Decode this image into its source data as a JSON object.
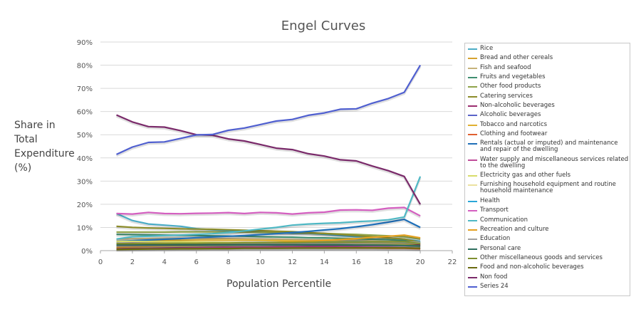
{
  "chart_data": {
    "type": "line",
    "title": "Engel Curves",
    "xlabel": "Population Percentile",
    "ylabel_lines": [
      "Share in",
      "Total",
      "Expenditure",
      "(%)"
    ],
    "xlim": [
      0,
      22
    ],
    "ylim": [
      0,
      90
    ],
    "x_ticks": [
      "0",
      "2",
      "4",
      "6",
      "8",
      "10",
      "12",
      "14",
      "16",
      "18",
      "20",
      "22"
    ],
    "y_ticks": [
      "0%",
      "10%",
      "20%",
      "30%",
      "40%",
      "50%",
      "60%",
      "70%",
      "80%",
      "90%"
    ],
    "x": [
      1,
      2,
      3,
      4,
      5,
      6,
      7,
      8,
      9,
      10,
      11,
      12,
      13,
      14,
      15,
      16,
      17,
      18,
      19,
      20
    ],
    "series": [
      {
        "name": "Rice",
        "color": "#4bacc6",
        "values": [
          16,
          13,
          11.5,
          11,
          10.5,
          9.5,
          9,
          8.5,
          8.5,
          8,
          8,
          7.5,
          7.5,
          7,
          6.5,
          6,
          6,
          5.5,
          5,
          4
        ]
      },
      {
        "name": "Bread and other cereals",
        "color": "#d6a32f",
        "values": [
          2.2,
          2.2,
          2.3,
          2.3,
          2.3,
          2.4,
          2.4,
          2.4,
          2.5,
          2.5,
          2.5,
          2.6,
          2.6,
          2.6,
          2.7,
          2.7,
          2.8,
          2.8,
          2.8,
          2.5
        ]
      },
      {
        "name": "Fish and seafood",
        "color": "#c6b27a",
        "values": [
          5,
          5.1,
          5.2,
          5.3,
          5.3,
          5.3,
          5.2,
          5.2,
          5.1,
          5,
          4.9,
          4.8,
          4.7,
          4.6,
          4.5,
          4.4,
          4.2,
          4,
          3.8,
          3
        ]
      },
      {
        "name": "Fruits and vegetables",
        "color": "#3f8e70",
        "values": [
          7,
          6.9,
          6.8,
          6.7,
          6.6,
          6.5,
          6.4,
          6.3,
          6.2,
          6,
          5.9,
          5.8,
          5.6,
          5.5,
          5.3,
          5.1,
          4.9,
          4.7,
          4.4,
          3.5
        ]
      },
      {
        "name": "Other food products",
        "color": "#8fa44a",
        "values": [
          8,
          8,
          8,
          8,
          8.1,
          8.1,
          8.1,
          8,
          8,
          7.9,
          7.8,
          7.7,
          7.6,
          7.4,
          7.2,
          7,
          6.7,
          6.4,
          6,
          5
        ]
      },
      {
        "name": "Catering services",
        "color": "#8c8c2a",
        "values": [
          10.5,
          10,
          9.8,
          9.6,
          9.4,
          9.3,
          9.2,
          9,
          8.8,
          8.6,
          8.4,
          8.2,
          7.8,
          7.4,
          7,
          6.5,
          6,
          5.5,
          5,
          3.5
        ]
      },
      {
        "name": "Non-alcoholic beverages",
        "color": "#9b2d6f",
        "values": [
          3,
          3.1,
          3.1,
          3.2,
          3.2,
          3.3,
          3.3,
          3.3,
          3.3,
          3.3,
          3.4,
          3.4,
          3.4,
          3.3,
          3.3,
          3.3,
          3.2,
          3.1,
          3,
          2.5
        ]
      },
      {
        "name": "Alcoholic beverages",
        "color": "#5a63c8",
        "values": [
          1,
          1,
          1,
          1.1,
          1.1,
          1.1,
          1.1,
          1.1,
          1.2,
          1.2,
          1.2,
          1.2,
          1.2,
          1.2,
          1.2,
          1.2,
          1.2,
          1.1,
          1.1,
          1
        ]
      },
      {
        "name": "Tobacco and narcotics",
        "color": "#e0b030",
        "values": [
          4,
          4.2,
          4.3,
          4.4,
          4.5,
          4.5,
          4.5,
          4.5,
          4.5,
          4.4,
          4.3,
          4.2,
          4.1,
          4,
          3.8,
          3.6,
          3.4,
          3.1,
          2.8,
          2
        ]
      },
      {
        "name": "Clothing and footwear",
        "color": "#e06030",
        "values": [
          1,
          1,
          1,
          1.1,
          1.1,
          1.1,
          1.1,
          1.1,
          1.1,
          1.1,
          1.1,
          1.1,
          1.1,
          1.1,
          1.1,
          1.1,
          1.1,
          1,
          1,
          0.8
        ]
      },
      {
        "name": "Rentals (actual or imputed) and maintenance and repair of the dwelling",
        "color": "#1f6fb8",
        "values": [
          4,
          4.3,
          4.6,
          4.9,
          5.2,
          5.6,
          5.9,
          6.2,
          6.5,
          6.9,
          7.3,
          7.8,
          8.3,
          8.9,
          9.5,
          10.3,
          11.2,
          12.3,
          13.5,
          10
        ]
      },
      {
        "name": "Water supply and miscellaneous services related to the dwelling",
        "color": "#c04c9a",
        "values": [
          1.2,
          1.3,
          1.3,
          1.4,
          1.4,
          1.5,
          1.5,
          1.5,
          1.6,
          1.6,
          1.7,
          1.7,
          1.8,
          1.8,
          1.9,
          1.9,
          2,
          2,
          2.1,
          2
        ]
      },
      {
        "name": "Electricity gas and other fuels",
        "color": "#d8dc6a",
        "values": [
          4,
          4,
          3.9,
          3.8,
          3.8,
          3.7,
          3.6,
          3.5,
          3.4,
          3.3,
          3.2,
          3.1,
          3,
          2.9,
          2.8,
          2.7,
          2.6,
          2.5,
          2.4,
          2
        ]
      },
      {
        "name": "Furnishing household equipment and routine household maintenance",
        "color": "#ece2a0",
        "values": [
          1.5,
          1.6,
          1.7,
          1.8,
          1.9,
          2,
          2.1,
          2.2,
          2.3,
          2.4,
          2.5,
          2.6,
          2.7,
          2.8,
          2.9,
          3,
          3.1,
          3.2,
          3.3,
          3
        ]
      },
      {
        "name": "Health",
        "color": "#2aa6d8",
        "values": [
          2.5,
          2.6,
          2.7,
          2.8,
          2.9,
          3,
          3.1,
          3.2,
          3.3,
          3.4,
          3.5,
          3.6,
          3.6,
          3.7,
          3.7,
          3.8,
          3.8,
          3.8,
          3.7,
          3.5
        ]
      },
      {
        "name": "Transport",
        "color": "#d45fc0",
        "values": [
          16,
          15.8,
          16.5,
          16,
          15.9,
          16.1,
          16.2,
          16.4,
          16,
          16.5,
          16.3,
          15.8,
          16.3,
          16.6,
          17.5,
          17.6,
          17.4,
          18.3,
          18.6,
          15
        ]
      },
      {
        "name": "Communication",
        "color": "#4fb8c4",
        "values": [
          5,
          6,
          6.2,
          6.5,
          6.7,
          7,
          7.3,
          7.8,
          8.5,
          9.3,
          10,
          11,
          11.5,
          11.8,
          12,
          12.5,
          12.8,
          13.3,
          14.5,
          32
        ]
      },
      {
        "name": "Recreation and culture",
        "color": "#e4a020",
        "values": [
          1.5,
          1.7,
          1.9,
          2.1,
          2.3,
          2.5,
          2.7,
          2.9,
          3.1,
          3.3,
          3.5,
          3.8,
          4.1,
          4.4,
          4.8,
          5.2,
          5.7,
          6.2,
          6.7,
          5.5
        ]
      },
      {
        "name": "Education",
        "color": "#a0a0a0",
        "values": [
          2,
          2.1,
          2.2,
          2.3,
          2.4,
          2.5,
          2.6,
          2.7,
          2.8,
          2.9,
          3,
          3.1,
          3.2,
          3.3,
          3.4,
          3.5,
          3.6,
          3.7,
          3.8,
          3.5
        ]
      },
      {
        "name": "Personal care",
        "color": "#2f6f5f",
        "values": [
          2.5,
          2.5,
          2.5,
          2.5,
          2.5,
          2.5,
          2.5,
          2.5,
          2.5,
          2.5,
          2.5,
          2.5,
          2.5,
          2.5,
          2.5,
          2.4,
          2.4,
          2.3,
          2.2,
          2
        ]
      },
      {
        "name": "Other miscellaneous goods and services",
        "color": "#7f8f30",
        "values": [
          3,
          3,
          3.1,
          3.1,
          3.2,
          3.2,
          3.3,
          3.3,
          3.4,
          3.4,
          3.5,
          3.5,
          3.6,
          3.6,
          3.7,
          3.7,
          3.8,
          3.8,
          3.9,
          3
        ]
      },
      {
        "name": "Food and non-alcoholic beverages",
        "color": "#6a6a10",
        "values": [
          0.5,
          0.6,
          0.7,
          0.7,
          0.8,
          0.8,
          0.9,
          0.9,
          1,
          1,
          1,
          1.1,
          1.1,
          1.1,
          1.2,
          1.2,
          1.2,
          1.2,
          1.2,
          1
        ]
      },
      {
        "name": "Non food",
        "color": "#7a2a6a",
        "values": [
          58.5,
          55.5,
          53.5,
          53.3,
          51.8,
          50,
          49.8,
          48.2,
          47.3,
          45.8,
          44.2,
          43.6,
          41.8,
          40.8,
          39.2,
          38.7,
          36.5,
          34.5,
          32,
          20
        ]
      },
      {
        "name": "Series 24",
        "color": "#4f5fd0",
        "values": [
          41.5,
          44.7,
          46.7,
          46.9,
          48.4,
          49.9,
          50.1,
          51.9,
          52.9,
          54.4,
          55.9,
          56.6,
          58.4,
          59.4,
          61,
          61.2,
          63.6,
          65.6,
          68.3,
          80
        ]
      }
    ]
  }
}
